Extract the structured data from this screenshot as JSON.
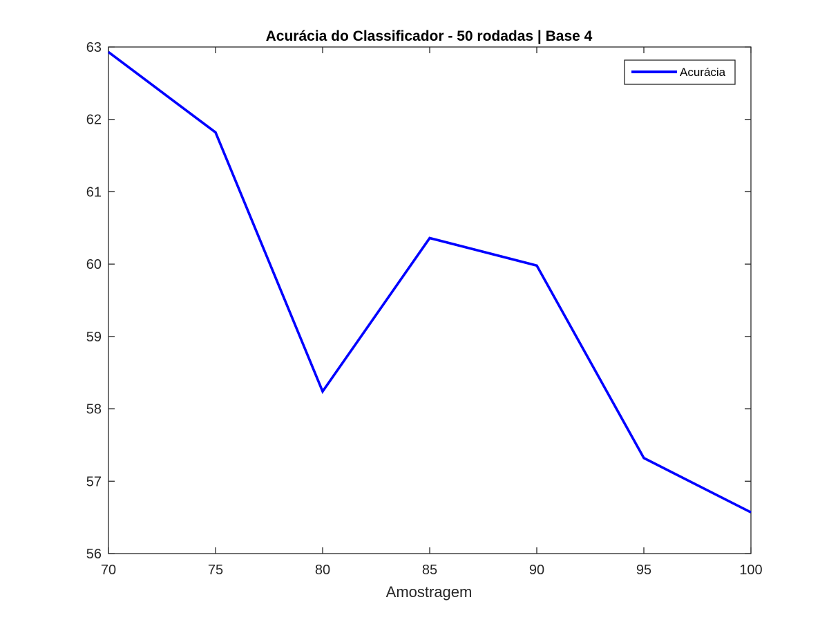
{
  "chart_data": {
    "type": "line",
    "title": "Acurácia do Classificador - 50 rodadas | Base 4",
    "xlabel": "Amostragem",
    "ylabel": "",
    "xlim": [
      70,
      100
    ],
    "ylim": [
      56,
      63
    ],
    "xticks": [
      70,
      75,
      80,
      85,
      90,
      95,
      100
    ],
    "yticks": [
      56,
      57,
      58,
      59,
      60,
      61,
      62,
      63
    ],
    "grid": false,
    "legend_position": "top-right",
    "series": [
      {
        "name": "Acurácia",
        "color": "#0000ff",
        "x": [
          70,
          75,
          80,
          85,
          90,
          95,
          100
        ],
        "y": [
          62.93,
          61.82,
          58.24,
          60.36,
          59.98,
          57.32,
          56.57
        ]
      }
    ]
  }
}
